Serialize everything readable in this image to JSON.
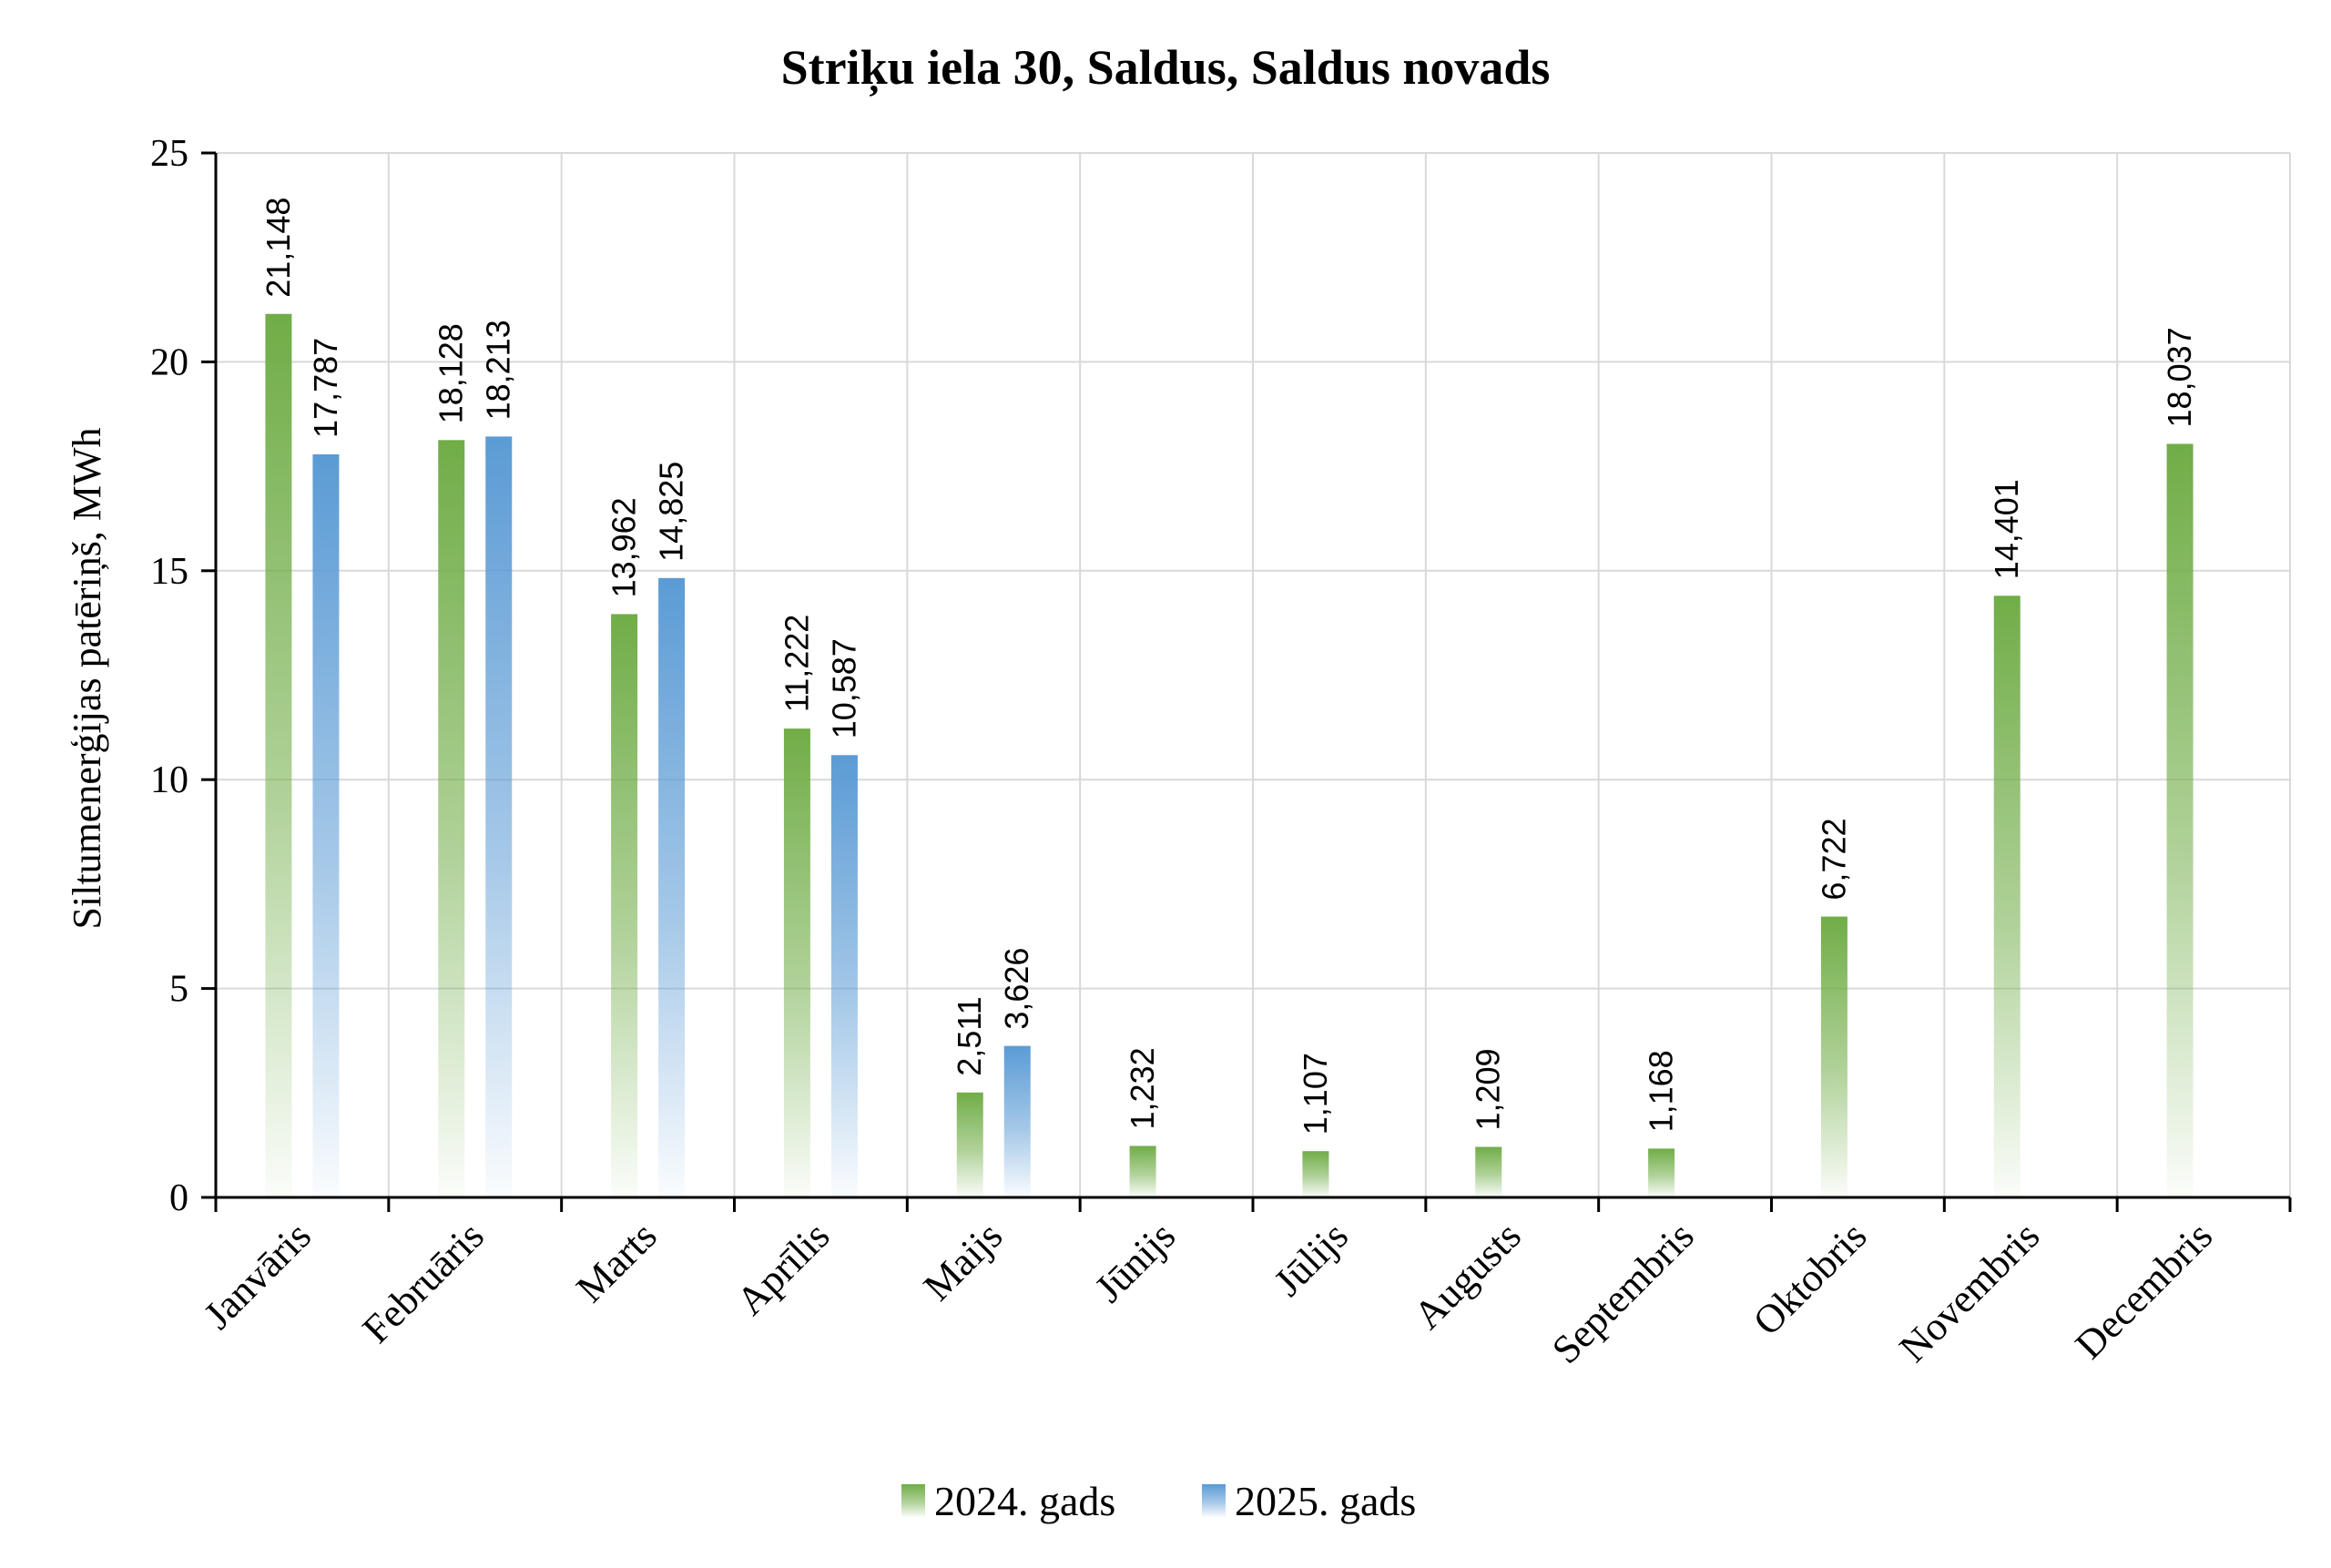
{
  "chart_data": {
    "type": "bar",
    "title": "Striķu iela 30, Saldus, Saldus novads",
    "xlabel": "",
    "ylabel": "Siltumenerģijas patēriņš, MWh",
    "ylim": [
      0,
      25
    ],
    "yticks": [
      0,
      5,
      10,
      15,
      20,
      25
    ],
    "grid": true,
    "legend_position": "bottom",
    "categories": [
      "Janvāris",
      "Februāris",
      "Marts",
      "Aprīlis",
      "Maijs",
      "Jūnijs",
      "Jūlijs",
      "Augusts",
      "Septembris",
      "Oktobris",
      "Novembris",
      "Decembris"
    ],
    "series": [
      {
        "name": "2024. gads",
        "color": "#70ad47",
        "values": [
          21.148,
          18.128,
          13.962,
          11.222,
          2.511,
          1.232,
          1.107,
          1.209,
          1.168,
          6.722,
          14.401,
          18.037
        ],
        "labels": [
          "21,148",
          "18,128",
          "13,962",
          "11,222",
          "2,511",
          "1,232",
          "1,107",
          "1,209",
          "1,168",
          "6,722",
          "14,401",
          "18,037"
        ]
      },
      {
        "name": "2025. gads",
        "color": "#5b9bd5",
        "values": [
          17.787,
          18.213,
          14.825,
          10.587,
          3.626,
          null,
          null,
          null,
          null,
          null,
          null,
          null
        ],
        "labels": [
          "17,787",
          "18,213",
          "14,825",
          "10,587",
          "3,626",
          "",
          "",
          "",
          "",
          "",
          "",
          ""
        ]
      }
    ]
  }
}
